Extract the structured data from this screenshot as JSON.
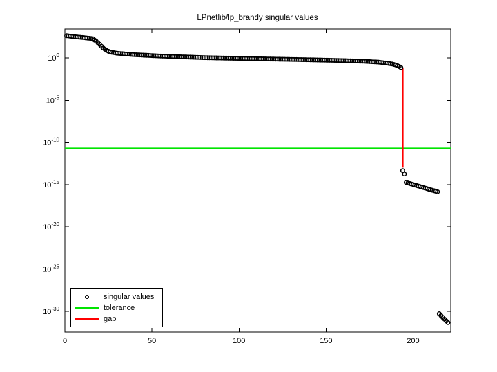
{
  "title": "LPnetlib/lp_brandy singular values",
  "colors": {
    "background": "#ffffff",
    "axis": "#000000",
    "marker": "#000000",
    "tolerance_line": "#00e400",
    "gap_line": "#ff0000"
  },
  "legend": {
    "position": "lower-left",
    "items": [
      {
        "label": "singular values",
        "swatch": "open-circle-marker",
        "color": "#000000"
      },
      {
        "label": "tolerance",
        "swatch": "line",
        "color": "#00e400"
      },
      {
        "label": "gap",
        "swatch": "line",
        "color": "#ff0000"
      }
    ]
  },
  "chart_data": {
    "type": "scatter",
    "title": "LPnetlib/lp_brandy singular values",
    "xlabel": "",
    "ylabel": "",
    "grid": false,
    "x_axis": {
      "ticks": [
        0,
        50,
        100,
        150,
        200
      ],
      "range": [
        0,
        221
      ]
    },
    "y_axis": {
      "scale": "log10",
      "tick_base": "10",
      "tick_exponents": [
        0,
        -5,
        -10,
        -15,
        -20,
        -25,
        -30
      ],
      "range_exponents": [
        -32.4,
        3.4
      ]
    },
    "series": [
      {
        "name": "singular values",
        "type": "scatter",
        "marker": "open-circle",
        "color": "#000000",
        "n_points": 220,
        "plateau_index_range": [
          1,
          193
        ],
        "plateau_anchors_log10": [
          [
            1,
            2.63
          ],
          [
            5,
            2.52
          ],
          [
            10,
            2.42
          ],
          [
            14,
            2.33
          ],
          [
            16,
            2.28
          ],
          [
            17,
            2.12
          ],
          [
            18,
            1.97
          ],
          [
            19,
            1.78
          ],
          [
            20,
            1.6
          ],
          [
            22,
            1.17
          ],
          [
            24,
            0.88
          ],
          [
            26,
            0.7
          ],
          [
            30,
            0.55
          ],
          [
            40,
            0.38
          ],
          [
            55,
            0.22
          ],
          [
            80,
            0.03
          ],
          [
            110,
            -0.1
          ],
          [
            140,
            -0.22
          ],
          [
            160,
            -0.32
          ],
          [
            172,
            -0.4
          ],
          [
            180,
            -0.5
          ],
          [
            185,
            -0.62
          ],
          [
            188,
            -0.72
          ],
          [
            190,
            -0.84
          ],
          [
            191,
            -0.92
          ],
          [
            192,
            -1.02
          ],
          [
            193,
            -1.15
          ]
        ],
        "tail_points_log10": [
          [
            194,
            -13.35
          ],
          [
            195,
            -13.75
          ],
          [
            196,
            -14.75
          ],
          [
            197,
            -14.81
          ],
          [
            198,
            -14.87
          ],
          [
            199,
            -14.93
          ],
          [
            200,
            -14.99
          ],
          [
            201,
            -15.06
          ],
          [
            202,
            -15.12
          ],
          [
            203,
            -15.18
          ],
          [
            204,
            -15.24
          ],
          [
            205,
            -15.3
          ],
          [
            206,
            -15.36
          ],
          [
            207,
            -15.42
          ],
          [
            208,
            -15.48
          ],
          [
            209,
            -15.55
          ],
          [
            210,
            -15.61
          ],
          [
            211,
            -15.67
          ],
          [
            212,
            -15.73
          ],
          [
            213,
            -15.79
          ],
          [
            214,
            -15.85
          ],
          [
            215,
            -30.3
          ],
          [
            216,
            -30.52
          ],
          [
            217,
            -30.73
          ],
          [
            218,
            -30.94
          ],
          [
            219,
            -31.15
          ],
          [
            220,
            -31.35
          ]
        ]
      },
      {
        "name": "tolerance",
        "type": "hline",
        "color": "#00e400",
        "value_label": "2e-11",
        "value_log10": -10.72
      },
      {
        "name": "gap",
        "type": "vline",
        "color": "#ff0000",
        "x": 194,
        "top_log10": -1.15,
        "bottom_log10": -13.0
      }
    ]
  }
}
